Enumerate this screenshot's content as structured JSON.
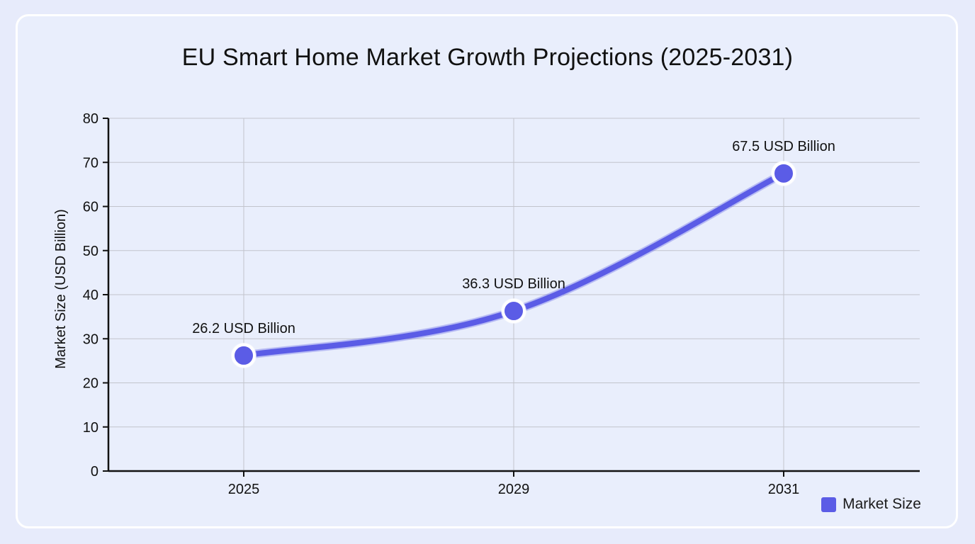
{
  "chart_data": {
    "type": "line",
    "title": "EU Smart Home Market Growth Projections (2025-2031)",
    "xlabel": "",
    "ylabel": "Market Size (USD Billion)",
    "categories": [
      "2025",
      "2029",
      "2031"
    ],
    "series": [
      {
        "name": "Market Size",
        "values": [
          26.2,
          36.3,
          67.5
        ],
        "labels": [
          "26.2 USD Billion",
          "36.3 USD Billion",
          "67.5 USD Billion"
        ],
        "color": "#5b5ce6"
      }
    ],
    "ylim": [
      0,
      80
    ],
    "yticks": [
      0,
      10,
      20,
      30,
      40,
      50,
      60,
      70,
      80
    ],
    "grid": true,
    "legend": "bottom-right"
  }
}
